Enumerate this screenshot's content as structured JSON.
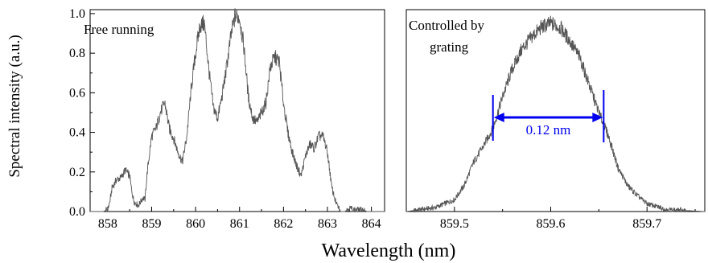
{
  "chart_data": [
    {
      "type": "line",
      "annotation": "Free running",
      "xlim": [
        857.6,
        864.3
      ],
      "ylim": [
        0,
        1.02
      ],
      "xticks": [
        858,
        859,
        860,
        861,
        862,
        863,
        864
      ],
      "yticks": [
        0.0,
        0.2,
        0.4,
        0.6,
        0.8,
        1.0
      ],
      "ytick_labels": [
        "0.0",
        "0.2",
        "0.4",
        "0.6",
        "0.8",
        "1.0"
      ],
      "line_color": "#555555",
      "series": [
        {
          "x": [
            857.6,
            857.9,
            858.0,
            858.05,
            858.1,
            858.2,
            858.3,
            858.4,
            858.5,
            858.55,
            858.6,
            858.7,
            858.8,
            858.85,
            858.9,
            859.0,
            859.1,
            859.2,
            859.3,
            859.4,
            859.5,
            859.6,
            859.7,
            859.8,
            859.9,
            860.0,
            860.1,
            860.2,
            860.3,
            860.4,
            860.5,
            860.6,
            860.7,
            860.8,
            860.9,
            861.0,
            861.1,
            861.2,
            861.3,
            861.4,
            861.5,
            861.6,
            861.7,
            861.8,
            861.9,
            862.0,
            862.1,
            862.2,
            862.3,
            862.4,
            862.5,
            862.6,
            862.7,
            862.8,
            862.9,
            863.0,
            863.1,
            863.2,
            863.3,
            863.4,
            863.5,
            863.6,
            863.7,
            863.8,
            863.9,
            864.0,
            864.3
          ],
          "y": [
            0.0,
            0.0,
            0.01,
            0.05,
            0.12,
            0.16,
            0.17,
            0.21,
            0.18,
            0.1,
            0.05,
            0.03,
            0.07,
            0.06,
            0.2,
            0.38,
            0.42,
            0.5,
            0.55,
            0.42,
            0.37,
            0.3,
            0.25,
            0.38,
            0.62,
            0.8,
            0.94,
            0.95,
            0.72,
            0.53,
            0.47,
            0.58,
            0.72,
            0.88,
            0.99,
            0.98,
            0.83,
            0.58,
            0.47,
            0.45,
            0.5,
            0.55,
            0.73,
            0.78,
            0.76,
            0.55,
            0.4,
            0.3,
            0.23,
            0.18,
            0.28,
            0.34,
            0.32,
            0.38,
            0.38,
            0.3,
            0.12,
            0.04,
            0.0,
            0.0,
            0.02,
            0.01,
            0.01,
            0.01,
            0.0,
            0.0,
            0.0
          ]
        }
      ]
    },
    {
      "type": "line",
      "annotation": [
        "Controlled by",
        "grating"
      ],
      "xlim": [
        859.45,
        859.76
      ],
      "ylim": [
        0,
        1.02
      ],
      "xticks": [
        859.5,
        859.6,
        859.7
      ],
      "xtick_labels": [
        "859.5",
        "859.6",
        "859.7"
      ],
      "line_color": "#555555",
      "fwhm": {
        "x1": 859.54,
        "x2": 859.655,
        "label": "0.12 nm",
        "color": "#0000ee"
      },
      "series": [
        {
          "x": [
            859.45,
            859.48,
            859.5,
            859.51,
            859.52,
            859.53,
            859.54,
            859.55,
            859.56,
            859.57,
            859.58,
            859.59,
            859.6,
            859.61,
            859.62,
            859.63,
            859.64,
            859.65,
            859.66,
            859.67,
            859.68,
            859.69,
            859.7,
            859.72,
            859.76
          ],
          "y": [
            0.0,
            0.02,
            0.06,
            0.13,
            0.25,
            0.33,
            0.42,
            0.58,
            0.72,
            0.82,
            0.88,
            0.93,
            0.95,
            0.93,
            0.86,
            0.78,
            0.64,
            0.5,
            0.38,
            0.22,
            0.13,
            0.08,
            0.04,
            0.01,
            0.0
          ]
        }
      ]
    }
  ],
  "ylabel": "Spectral intensity (a.u.)",
  "xlabel": "Wavelength (nm)"
}
